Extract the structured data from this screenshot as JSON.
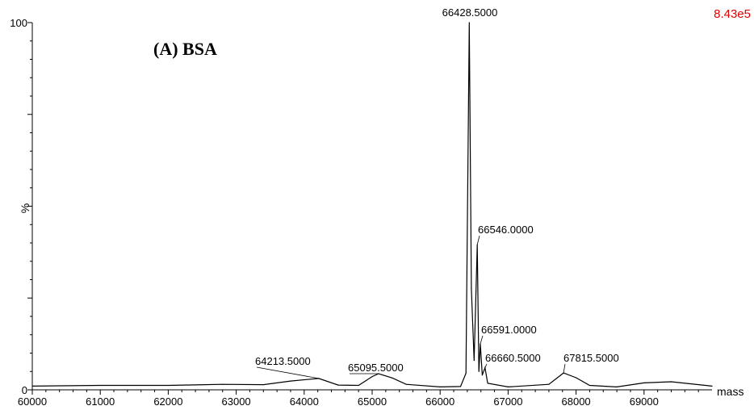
{
  "chart_data": {
    "type": "line",
    "title": "(A) BSA",
    "intensity_scale": "8.43e5",
    "xlabel": "mass",
    "ylabel": "%",
    "xlim": [
      60000,
      70000
    ],
    "ylim": [
      0,
      100
    ],
    "x_ticks": [
      "60000",
      "61000",
      "62000",
      "63000",
      "64000",
      "65000",
      "66000",
      "67000",
      "68000",
      "69000"
    ],
    "y_ticks": [
      "0",
      "100"
    ],
    "series": [
      {
        "points": [
          {
            "x": 60000,
            "y": 1.0
          },
          {
            "x": 61000,
            "y": 1.2
          },
          {
            "x": 62000,
            "y": 1.2
          },
          {
            "x": 62800,
            "y": 1.5
          },
          {
            "x": 63400,
            "y": 1.4
          },
          {
            "x": 63800,
            "y": 2.4
          },
          {
            "x": 64213.5,
            "y": 3.1
          },
          {
            "x": 64500,
            "y": 1.3
          },
          {
            "x": 64800,
            "y": 1.2
          },
          {
            "x": 65000,
            "y": 3.6
          },
          {
            "x": 65095.5,
            "y": 4.4
          },
          {
            "x": 65300,
            "y": 3.2
          },
          {
            "x": 65500,
            "y": 1.5
          },
          {
            "x": 66000,
            "y": 0.8
          },
          {
            "x": 66300,
            "y": 0.9
          },
          {
            "x": 66380,
            "y": 4.5
          },
          {
            "x": 66428.5,
            "y": 100.0
          },
          {
            "x": 66460,
            "y": 27.5
          },
          {
            "x": 66500,
            "y": 8.0
          },
          {
            "x": 66546.0,
            "y": 39.5
          },
          {
            "x": 66570,
            "y": 5.0
          },
          {
            "x": 66591.0,
            "y": 12.5
          },
          {
            "x": 66620,
            "y": 4.0
          },
          {
            "x": 66660.5,
            "y": 6.0
          },
          {
            "x": 66700,
            "y": 1.8
          },
          {
            "x": 67000,
            "y": 0.8
          },
          {
            "x": 67600,
            "y": 1.5
          },
          {
            "x": 67815.5,
            "y": 4.6
          },
          {
            "x": 68000,
            "y": 3.3
          },
          {
            "x": 68200,
            "y": 1.2
          },
          {
            "x": 68600,
            "y": 0.8
          },
          {
            "x": 69000,
            "y": 1.9
          },
          {
            "x": 69400,
            "y": 2.2
          },
          {
            "x": 70000,
            "y": 1.0
          }
        ]
      }
    ],
    "peak_labels": [
      {
        "x": 66428.5,
        "y": 100.0,
        "label": "66428.5000"
      },
      {
        "x": 66546.0,
        "y": 39.5,
        "label": "66546.0000"
      },
      {
        "x": 66591.0,
        "y": 12.5,
        "label": "66591.0000"
      },
      {
        "x": 66660.5,
        "y": 6.0,
        "label": "66660.5000"
      },
      {
        "x": 67815.5,
        "y": 4.6,
        "label": "67815.5000"
      },
      {
        "x": 64213.5,
        "y": 3.1,
        "label": "64213.5000"
      },
      {
        "x": 65095.5,
        "y": 4.4,
        "label": "65095.5000"
      }
    ],
    "grid": false,
    "colors": {
      "line": "#000000",
      "scale_text": "#e00000"
    }
  }
}
